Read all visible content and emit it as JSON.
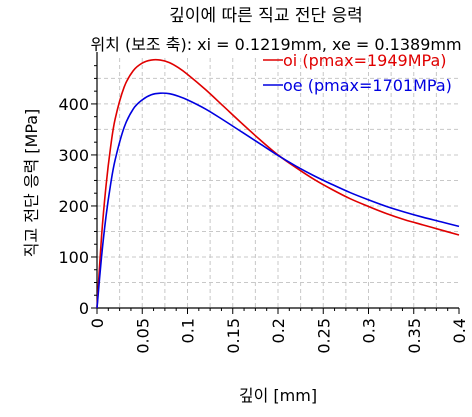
{
  "chart_data": {
    "type": "line",
    "title": "깊이에 따른 직교 전단 응력",
    "subtitle": "위치 (보조 축): xi = 0.1219mm, xe = 0.1389mm",
    "xlabel": "깊이 [mm]",
    "ylabel": "직교 전단 응력 [MPa]",
    "xlim": [
      0,
      0.4
    ],
    "ylim": [
      0,
      490
    ],
    "x_ticks": [
      0,
      0.05,
      0.1,
      0.15,
      0.2,
      0.25,
      0.3,
      0.35,
      0.4
    ],
    "x_tick_labels": [
      "0",
      "0.05",
      "0.1",
      "0.15",
      "0.2",
      "0.25",
      "0.3",
      "0.35",
      "0.4"
    ],
    "y_ticks": [
      0,
      100,
      200,
      300,
      400
    ],
    "y_tick_labels": [
      "0",
      "100",
      "200",
      "300",
      "400"
    ],
    "grid": true,
    "legend_position": "top-right",
    "series": [
      {
        "name": "oi (pmax=1949MPa)",
        "color": "#e00000",
        "x": [
          0,
          0.005,
          0.01,
          0.015,
          0.02,
          0.03,
          0.04,
          0.05,
          0.06,
          0.07,
          0.08,
          0.09,
          0.1,
          0.12,
          0.14,
          0.16,
          0.18,
          0.2,
          0.22,
          0.24,
          0.26,
          0.28,
          0.3,
          0.32,
          0.34,
          0.36,
          0.38,
          0.4
        ],
        "values": [
          0,
          140,
          240,
          315,
          370,
          433,
          465,
          480,
          486,
          486,
          481,
          471,
          458,
          428,
          395,
          362,
          330,
          300,
          275,
          252,
          232,
          214,
          199,
          185,
          173,
          163,
          153,
          143
        ]
      },
      {
        "name": "oe (pmax=1701MPa)",
        "color": "#0000e0",
        "x": [
          0,
          0.005,
          0.01,
          0.015,
          0.02,
          0.03,
          0.04,
          0.05,
          0.06,
          0.07,
          0.08,
          0.09,
          0.1,
          0.12,
          0.14,
          0.16,
          0.18,
          0.2,
          0.22,
          0.24,
          0.26,
          0.28,
          0.3,
          0.32,
          0.34,
          0.36,
          0.38,
          0.4
        ],
        "values": [
          0,
          100,
          180,
          242,
          290,
          354,
          390,
          408,
          418,
          421,
          420,
          415,
          408,
          390,
          368,
          345,
          322,
          299,
          278,
          259,
          242,
          226,
          212,
          199,
          188,
          178,
          169,
          160
        ]
      }
    ]
  }
}
